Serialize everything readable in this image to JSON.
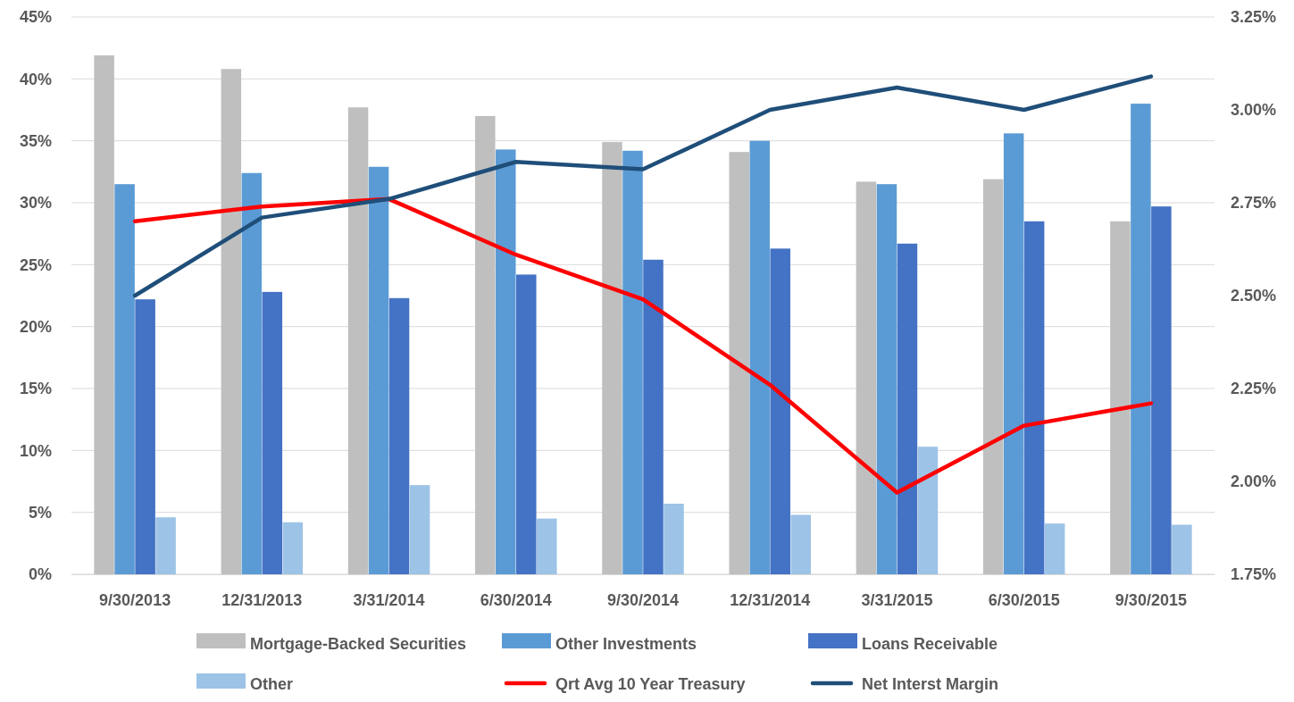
{
  "chart_data": {
    "type": "bar",
    "categories": [
      "9/30/2013",
      "12/31/2013",
      "3/31/2014",
      "6/30/2014",
      "9/30/2014",
      "12/31/2014",
      "3/31/2015",
      "6/30/2015",
      "9/30/2015"
    ],
    "series": [
      {
        "name": "Mortgage-Backed Securities",
        "color": "#bfbfbf",
        "values": [
          41.9,
          40.8,
          37.7,
          37.0,
          34.9,
          34.1,
          31.7,
          31.9,
          28.5
        ]
      },
      {
        "name": "Other Investments",
        "color": "#5b9bd5",
        "values": [
          31.5,
          32.4,
          32.9,
          34.3,
          34.2,
          35.0,
          31.5,
          35.6,
          38.0
        ]
      },
      {
        "name": "Loans Receivable",
        "color": "#4472c4",
        "values": [
          22.2,
          22.8,
          22.3,
          24.2,
          25.4,
          26.3,
          26.7,
          28.5,
          29.7
        ]
      },
      {
        "name": "Other",
        "color": "#9dc3e6",
        "values": [
          4.6,
          4.2,
          7.2,
          4.5,
          5.7,
          4.8,
          10.3,
          4.1,
          4.0
        ]
      },
      {
        "name": "Qrt Avg 10 Year Treasury",
        "type": "line",
        "axis": "y2",
        "color": "#ff0000",
        "values": [
          2.7,
          2.74,
          2.76,
          2.61,
          2.49,
          2.26,
          1.97,
          2.15,
          2.21
        ]
      },
      {
        "name": "Net Interst Margin",
        "type": "line",
        "axis": "y2",
        "color": "#1f4e79",
        "values": [
          2.5,
          2.71,
          2.76,
          2.86,
          2.84,
          3.0,
          3.06,
          3.0,
          3.09
        ]
      }
    ],
    "ylim": [
      0,
      45
    ],
    "yticks": [
      {
        "value": 0,
        "label": "0%"
      },
      {
        "value": 5,
        "label": "5%"
      },
      {
        "value": 10,
        "label": "10%"
      },
      {
        "value": 15,
        "label": "15%"
      },
      {
        "value": 20,
        "label": "20%"
      },
      {
        "value": 25,
        "label": "25%"
      },
      {
        "value": 30,
        "label": "30%"
      },
      {
        "value": 35,
        "label": "35%"
      },
      {
        "value": 40,
        "label": "40%"
      },
      {
        "value": 45,
        "label": "45%"
      }
    ],
    "y2lim": [
      1.75,
      3.25
    ],
    "y2ticks": [
      {
        "value": 1.75,
        "label": "1.75%"
      },
      {
        "value": 2.0,
        "label": "2.00%"
      },
      {
        "value": 2.25,
        "label": "2.25%"
      },
      {
        "value": 2.5,
        "label": "2.50%"
      },
      {
        "value": 2.75,
        "label": "2.75%"
      },
      {
        "value": 3.0,
        "label": "3.00%"
      },
      {
        "value": 3.25,
        "label": "3.25%"
      }
    ],
    "grid": "y",
    "legend": "bottom",
    "marker": "none",
    "line_style": "solid"
  }
}
